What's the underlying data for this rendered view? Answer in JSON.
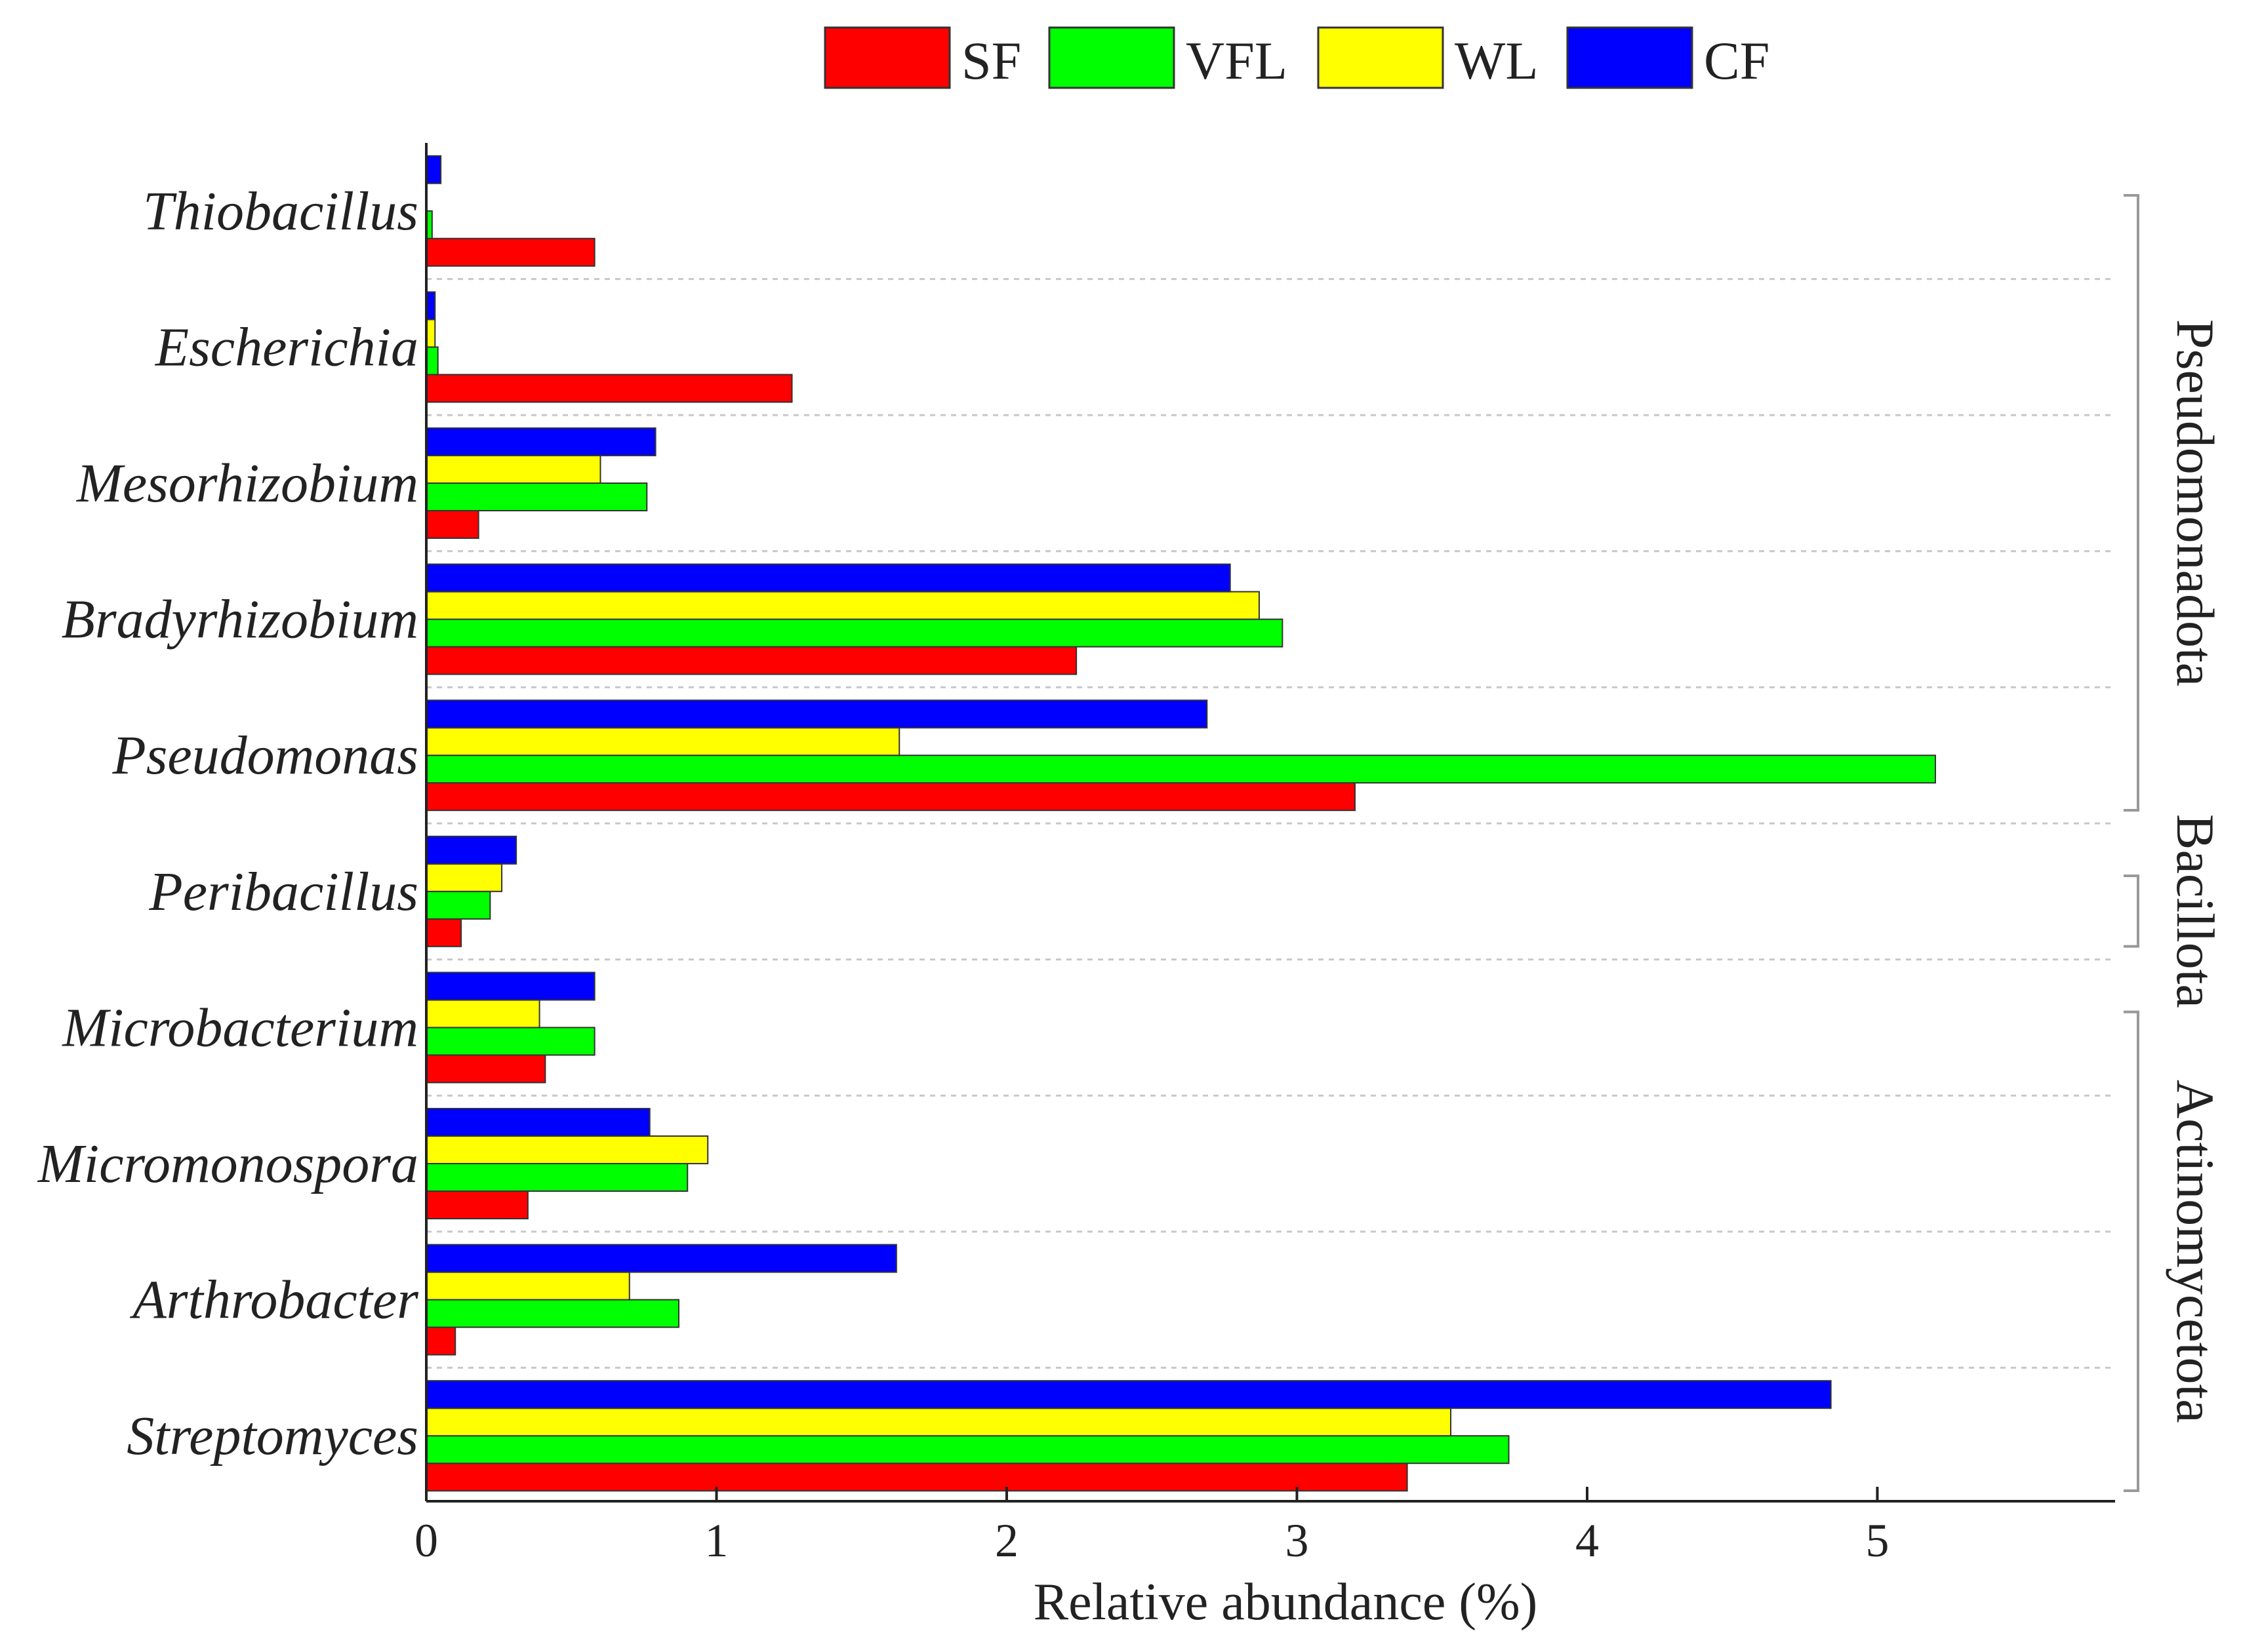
{
  "chart_data": {
    "type": "bar",
    "orientation": "horizontal",
    "title": "",
    "xlabel": "Relative abundance (%)",
    "ylabel": "",
    "xlim": [
      0,
      5.8
    ],
    "xticks": [
      "0",
      "1",
      "2",
      "3",
      "4",
      "5"
    ],
    "legend_position": "top",
    "categories": [
      "Thiobacillus",
      "Escherichia",
      "Mesorhizobium",
      "Bradyrhizobium",
      "Pseudomonas",
      "Peribacillus",
      "Microbacterium",
      "Micromonospora",
      "Arthrobacter",
      "Streptomyces"
    ],
    "series": [
      {
        "name": "SF",
        "color": "#ff0000",
        "values": [
          0.58,
          1.26,
          0.18,
          2.24,
          3.2,
          0.12,
          0.41,
          0.35,
          0.1,
          3.38
        ]
      },
      {
        "name": "VFL",
        "color": "#00ff00",
        "values": [
          0.02,
          0.04,
          0.76,
          2.95,
          5.2,
          0.22,
          0.58,
          0.9,
          0.87,
          3.73
        ]
      },
      {
        "name": "WL",
        "color": "#ffff00",
        "values": [
          0.0,
          0.03,
          0.6,
          2.87,
          1.63,
          0.26,
          0.39,
          0.97,
          0.7,
          3.53
        ]
      },
      {
        "name": "CF",
        "color": "#0000ff",
        "values": [
          0.05,
          0.03,
          0.79,
          2.77,
          2.69,
          0.31,
          0.58,
          0.77,
          1.62,
          4.84
        ]
      }
    ],
    "groups": [
      {
        "name": "Pseudomonadota",
        "first": 0,
        "last": 4
      },
      {
        "name": "Bacillota",
        "first": 5,
        "last": 5
      },
      {
        "name": "Actinomycetota",
        "first": 6,
        "last": 9
      }
    ]
  }
}
